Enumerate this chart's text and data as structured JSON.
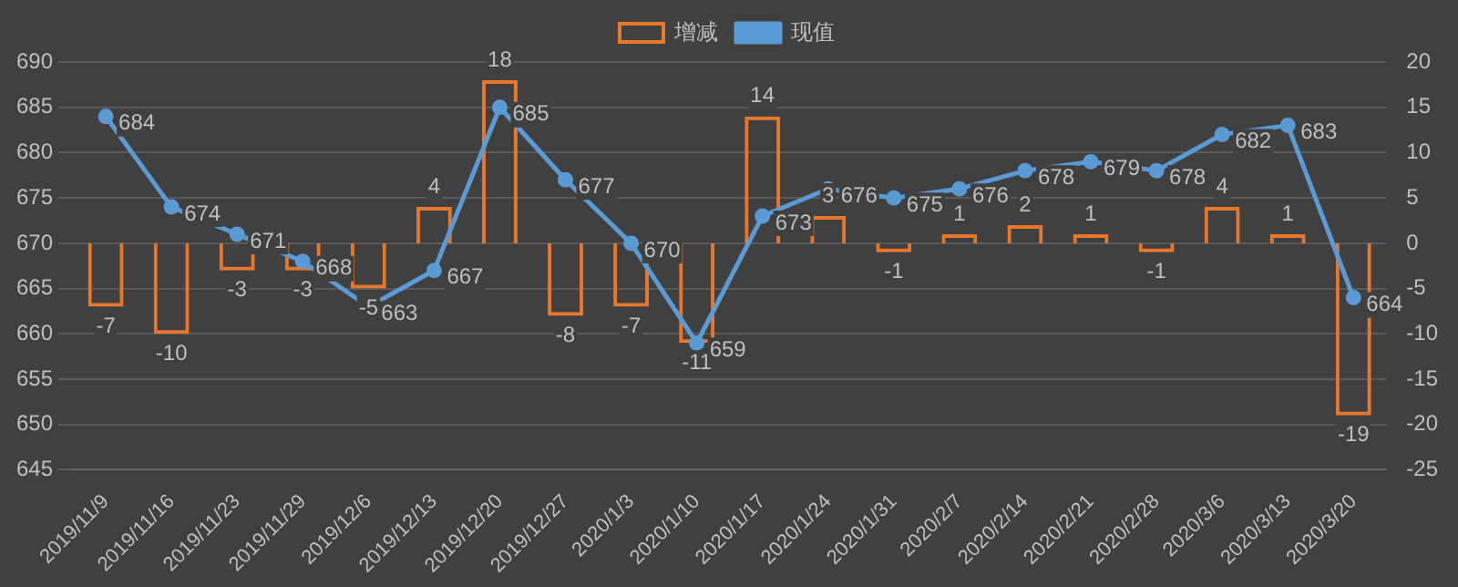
{
  "chart_data": {
    "type": "bar",
    "categories": [
      "2019/11/9",
      "2019/11/16",
      "2019/11/23",
      "2019/11/29",
      "2019/12/6",
      "2019/12/13",
      "2019/12/20",
      "2019/12/27",
      "2020/1/3",
      "2020/1/10",
      "2020/1/17",
      "2020/1/24",
      "2020/1/31",
      "2020/2/7",
      "2020/2/14",
      "2020/2/21",
      "2020/2/28",
      "2020/3/6",
      "2020/3/13",
      "2020/3/20"
    ],
    "series": [
      {
        "name": "增减",
        "axis": "y2",
        "color": "#e8772e",
        "values": [
          -7,
          -10,
          -3,
          -3,
          -5,
          4,
          18,
          -8,
          -7,
          -11,
          14,
          3,
          -1,
          1,
          2,
          1,
          -1,
          4,
          1,
          -19
        ]
      },
      {
        "name": "现值",
        "type": "line",
        "color": "#5b9bd5",
        "values": [
          684,
          674,
          671,
          668,
          663,
          667,
          685,
          677,
          670,
          659,
          673,
          676,
          675,
          676,
          678,
          679,
          678,
          682,
          683,
          664
        ]
      }
    ],
    "ylim": [
      645,
      690
    ],
    "yticks": [
      645,
      650,
      655,
      660,
      665,
      670,
      675,
      680,
      685,
      690
    ],
    "y2lim": [
      -25,
      20
    ],
    "y2ticks": [
      -25,
      -20,
      -15,
      -10,
      -5,
      0,
      5,
      10,
      15,
      20
    ],
    "grid": "y",
    "legend": "top",
    "marker": "circle",
    "line_style": "solid",
    "data_labels": true
  }
}
